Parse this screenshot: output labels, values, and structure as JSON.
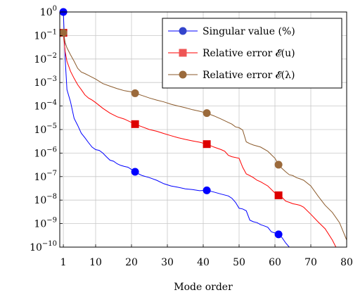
{
  "chart_data": {
    "type": "line",
    "xlabel": "Mode order",
    "ylabel": "",
    "xlim": [
      0,
      80
    ],
    "ylim": [
      1e-10,
      1
    ],
    "yscale": "log",
    "grid": true,
    "legend_position": "top-right",
    "x_ticks": [
      "1",
      "10",
      "20",
      "30",
      "40",
      "50",
      "60",
      "70",
      "80"
    ],
    "x_tick_values": [
      1,
      10,
      20,
      30,
      40,
      50,
      60,
      70,
      80
    ],
    "y_ticks": [
      "10^0",
      "10^-1",
      "10^-2",
      "10^-3",
      "10^-4",
      "10^-5",
      "10^-6",
      "10^-7",
      "10^-8",
      "10^-9",
      "10^-10"
    ],
    "y_tick_exponents": [
      0,
      -1,
      -2,
      -3,
      -4,
      -5,
      -6,
      -7,
      -8,
      -9,
      -10
    ],
    "series": [
      {
        "name": "Singular value (%)",
        "color": "#0000ff",
        "marker": "circle",
        "marker_fill": "#0000ff",
        "legend_marker_fill": "#3344cc",
        "markers_at": [
          1,
          21,
          41,
          61
        ],
        "x": [
          1,
          1.5,
          2,
          3,
          4,
          5,
          6,
          7,
          8,
          9,
          10,
          11,
          12,
          13,
          14,
          15,
          16,
          17,
          18,
          19,
          20,
          21,
          22,
          23,
          25,
          27,
          29,
          31,
          33,
          35,
          37,
          39,
          41,
          43,
          45,
          47,
          48,
          49,
          50,
          51,
          52,
          53,
          54,
          55,
          56,
          57,
          58,
          59,
          60,
          61,
          62,
          63,
          64
        ],
        "values": [
          1,
          0.01,
          0.0005,
          0.00015,
          3e-05,
          1.5e-05,
          7e-06,
          4.5e-06,
          2.8e-06,
          1.8e-06,
          1.4e-06,
          1.3e-06,
          1e-06,
          7e-07,
          5e-07,
          4.5e-07,
          3.5e-07,
          3e-07,
          2.7e-07,
          2.5e-07,
          2e-07,
          1.6e-07,
          1.3e-07,
          1.1e-07,
          9e-08,
          7e-08,
          5e-08,
          4e-08,
          3.5e-08,
          3e-08,
          2.8e-08,
          2.5e-08,
          2.6e-08,
          2.2e-08,
          1.8e-08,
          1.5e-08,
          1.2e-08,
          8e-09,
          4.5e-09,
          4.2e-09,
          3.5e-09,
          1.4e-09,
          1.2e-09,
          1.1e-09,
          9e-10,
          8e-10,
          7e-10,
          4.5e-10,
          4e-10,
          3.5e-10,
          2.5e-10,
          1.5e-10,
          1e-10
        ]
      },
      {
        "name": "Relative error 𝓔(u)",
        "color": "#ff0000",
        "marker": "square",
        "marker_fill": "#dd0000",
        "legend_marker_fill": "#ee5555",
        "markers_at": [
          1,
          21,
          41,
          61
        ],
        "x": [
          1,
          1.5,
          2,
          3,
          4,
          5,
          6,
          7,
          8,
          9,
          10,
          12,
          14,
          16,
          18,
          20,
          21,
          23,
          25,
          27,
          29,
          31,
          33,
          35,
          37,
          39,
          41,
          43,
          45,
          46,
          47,
          48,
          50,
          51,
          52,
          53,
          54,
          55,
          56,
          58,
          60,
          61,
          62,
          63,
          64,
          65,
          66,
          67,
          68,
          70,
          72,
          74,
          76,
          77
        ],
        "values": [
          0.13,
          0.02,
          0.008,
          0.003,
          0.0015,
          0.0008,
          0.0005,
          0.0003,
          0.00022,
          0.00018,
          0.00014,
          8e-05,
          5e-05,
          3.5e-05,
          2.8e-05,
          2e-05,
          1.7e-05,
          1.3e-05,
          1e-05,
          8.5e-06,
          6.8e-06,
          5.5e-06,
          4.5e-06,
          3.8e-06,
          3.3e-06,
          2.9e-06,
          2.4e-06,
          1.8e-06,
          1.4e-06,
          1.2e-06,
          8e-07,
          7e-07,
          6e-07,
          2.5e-07,
          1.3e-07,
          1.1e-07,
          9e-08,
          7e-08,
          6e-08,
          4e-08,
          2e-08,
          1.6e-08,
          1.3e-08,
          9e-09,
          8e-09,
          7e-09,
          6.5e-09,
          6e-09,
          5e-09,
          2.5e-09,
          1.2e-09,
          6e-10,
          2e-10,
          1e-10
        ]
      },
      {
        "name": "Relative error 𝓔(λ)",
        "color": "#8b5a2b",
        "marker": "circle",
        "marker_fill": "#9b6a3b",
        "legend_marker_fill": "#9b6a3b",
        "markers_at": [
          1,
          21,
          41,
          61
        ],
        "x": [
          1,
          1.5,
          2,
          3,
          4,
          5,
          6,
          7,
          8,
          10,
          12,
          14,
          16,
          18,
          20,
          21,
          23,
          25,
          27,
          29,
          31,
          33,
          35,
          37,
          39,
          41,
          43,
          45,
          47,
          48,
          49,
          50,
          51,
          52,
          53,
          54,
          56,
          58,
          60,
          61,
          62,
          63,
          64,
          65,
          66,
          67,
          68,
          70,
          72,
          74,
          76,
          78,
          80
        ],
        "values": [
          0.13,
          0.05,
          0.03,
          0.015,
          0.008,
          0.004,
          0.0028,
          0.0024,
          0.002,
          0.0014,
          0.0009,
          0.0007,
          0.00055,
          0.00045,
          0.0004,
          0.00035,
          0.00028,
          0.00022,
          0.00018,
          0.00015,
          0.00012,
          0.0001,
          8.5e-05,
          7e-05,
          6e-05,
          5e-05,
          3.8e-05,
          2.8e-05,
          2e-05,
          1.7e-05,
          1.3e-05,
          1.2e-05,
          9.5e-06,
          3e-06,
          2.5e-06,
          2.2e-06,
          1.8e-06,
          1.2e-06,
          6e-07,
          3.2e-07,
          2.2e-07,
          1.6e-07,
          1.2e-07,
          1.1e-07,
          9e-08,
          8e-08,
          7e-08,
          4e-08,
          1.5e-08,
          6e-09,
          3e-09,
          1.1e-09,
          2e-10
        ]
      }
    ]
  }
}
